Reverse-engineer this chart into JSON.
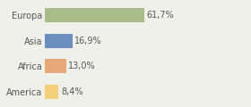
{
  "categories": [
    "Europa",
    "Asia",
    "Africa",
    "America"
  ],
  "values": [
    61.7,
    16.9,
    13.0,
    8.4
  ],
  "labels": [
    "61,7%",
    "16,9%",
    "13,0%",
    "8,4%"
  ],
  "bar_colors": [
    "#a8bc8a",
    "#6c8ebf",
    "#e8a97a",
    "#f5d07a"
  ],
  "background_color": "#f0f0eb",
  "xlim": [
    0,
    100
  ],
  "bar_height": 0.55,
  "label_fontsize": 7,
  "tick_fontsize": 7,
  "grid_color": "#cccccc"
}
